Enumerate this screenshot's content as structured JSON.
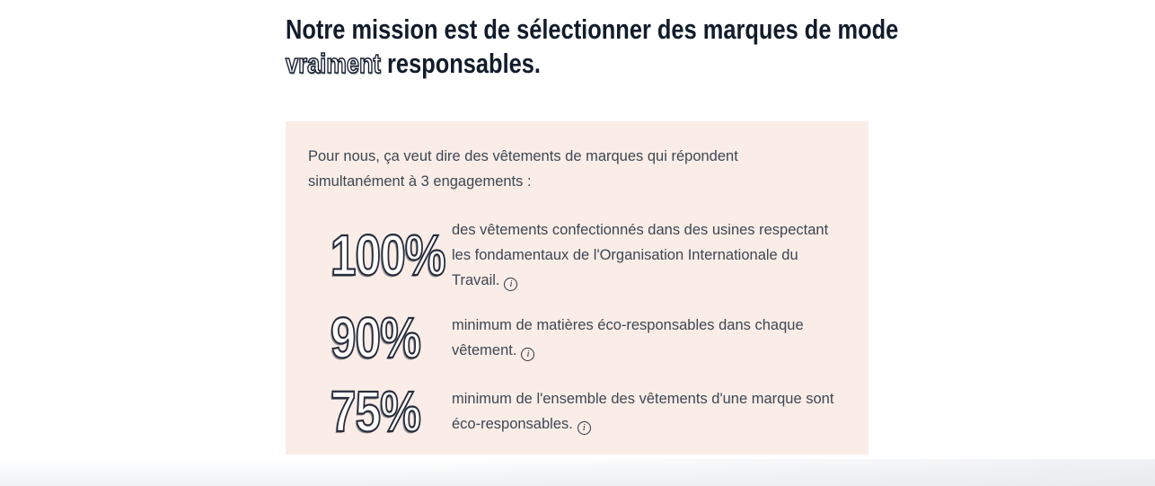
{
  "heading": {
    "line1": "Notre mission est de sélectionner des marques de mode",
    "outlined_word": "vraiment",
    "line2_rest": " responsables."
  },
  "panel": {
    "bg_color": "#faede7",
    "intro_line1": "Pour nous, ça veut dire des vêtements de marques qui répondent",
    "intro_line2": "simultanément à 3 engagements :",
    "engagements": [
      {
        "value": "100%",
        "text": "des vêtements confectionnés dans des usines respectant les fondamentaux de l'Organisation Internationale du Travail.",
        "info_icon_glyph": "i"
      },
      {
        "value": "90%",
        "text": "minimum de matières éco-responsables dans chaque vêtement.",
        "info_icon_glyph": "i"
      },
      {
        "value": "75%",
        "text": "minimum de l'ensemble des vêtements d'une marque sont éco-responsables.",
        "info_icon_glyph": "i"
      }
    ]
  },
  "colors": {
    "heading_text": "#121c2b",
    "body_text": "#3d4653",
    "panel_background": "#faede7"
  }
}
